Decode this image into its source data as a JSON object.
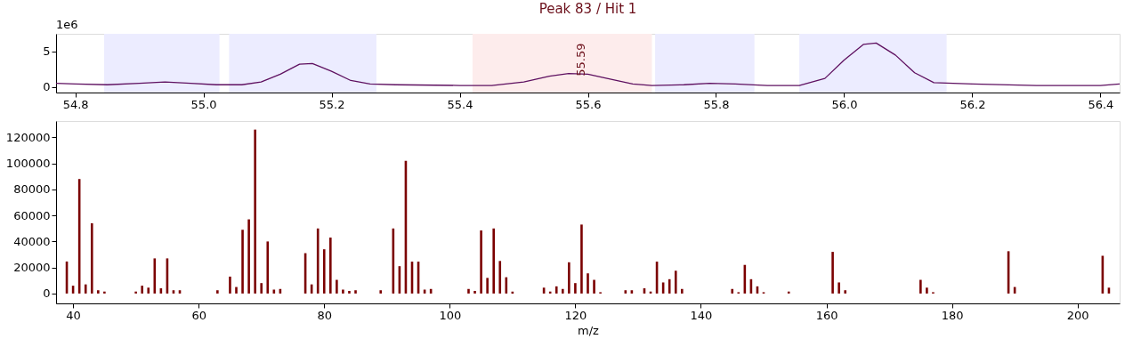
{
  "chart_data": [
    {
      "type": "line",
      "title": "Peak 83 / Hit 1",
      "x": [
        54.77,
        54.8,
        54.85,
        54.9,
        54.94,
        54.98,
        55.02,
        55.06,
        55.09,
        55.12,
        55.15,
        55.17,
        55.2,
        55.23,
        55.26,
        55.3,
        55.4,
        55.45,
        55.5,
        55.54,
        55.57,
        55.6,
        55.63,
        55.67,
        55.7,
        55.75,
        55.79,
        55.83,
        55.88,
        55.93,
        55.97,
        56.0,
        56.03,
        56.05,
        56.08,
        56.11,
        56.14,
        56.17,
        56.2,
        56.3,
        56.4,
        56.43
      ],
      "series": [
        {
          "color": "#5e1060",
          "values": [
            0.5,
            0.4,
            0.3,
            0.5,
            0.7,
            0.5,
            0.3,
            0.3,
            0.7,
            1.8,
            3.2,
            3.3,
            2.2,
            0.9,
            0.4,
            0.3,
            0.2,
            0.2,
            0.7,
            1.5,
            1.9,
            1.8,
            1.2,
            0.4,
            0.2,
            0.3,
            0.5,
            0.4,
            0.2,
            0.2,
            1.2,
            3.8,
            6.0,
            6.2,
            4.5,
            2.0,
            0.6,
            0.5,
            0.4,
            0.2,
            0.2,
            0.4
          ]
        }
      ],
      "xlim": [
        54.77,
        56.43
      ],
      "xticks": [
        54.8,
        {
          "value": 55.0,
          "label": "55.0"
        },
        55.2,
        55.4,
        55.6,
        55.8,
        {
          "value": 56.0,
          "label": "56.0"
        },
        56.2,
        56.4
      ],
      "ylim": [
        -0.8,
        7.5
      ],
      "yticks": [
        0,
        5
      ],
      "bands": [
        {
          "axis": "x",
          "from": 54.845,
          "to": 55.025,
          "color": "#ececff"
        },
        {
          "axis": "x",
          "from": 55.04,
          "to": 55.27,
          "color": "#ececff"
        },
        {
          "axis": "x",
          "from": 55.42,
          "to": 55.7,
          "color": "#fdecec"
        },
        {
          "axis": "x",
          "from": 55.705,
          "to": 55.86,
          "color": "#ececff"
        },
        {
          "axis": "x",
          "from": 55.93,
          "to": 56.16,
          "color": "#ececff"
        }
      ],
      "annotations": [
        "1e6",
        {
          "text": "55.59",
          "x": 55.59,
          "y": 1.5
        }
      ],
      "grid": false,
      "line_style": "solid",
      "marker": "none"
    },
    {
      "type": "bar",
      "xlabel": "m/z",
      "x": [
        39,
        40,
        41,
        42,
        43,
        44,
        45,
        50,
        51,
        52,
        53,
        54,
        55,
        56,
        57,
        63,
        65,
        66,
        67,
        68,
        69,
        70,
        71,
        72,
        73,
        77,
        78,
        79,
        80,
        81,
        82,
        83,
        84,
        85,
        89,
        91,
        92,
        93,
        94,
        95,
        96,
        97,
        103,
        104,
        105,
        106,
        107,
        108,
        109,
        110,
        115,
        116,
        117,
        118,
        119,
        120,
        121,
        122,
        123,
        124,
        128,
        129,
        131,
        132,
        133,
        134,
        135,
        136,
        137,
        145,
        146,
        147,
        148,
        149,
        150,
        154,
        161,
        162,
        163,
        175,
        176,
        177,
        189,
        190,
        204,
        205
      ],
      "series": [
        {
          "color": "#7b0000",
          "values": [
            24600,
            6000,
            88000,
            7000,
            54000,
            2500,
            1500,
            1500,
            6000,
            4500,
            27000,
            4000,
            27000,
            2500,
            2500,
            2500,
            13000,
            5000,
            49000,
            57000,
            126000,
            8000,
            40000,
            3000,
            3500,
            31000,
            7000,
            50000,
            34000,
            43000,
            10500,
            3000,
            2000,
            2500,
            2500,
            50000,
            21000,
            102000,
            24500,
            24500,
            3000,
            3500,
            3500,
            2000,
            48500,
            12000,
            50000,
            25000,
            12500,
            1500,
            4500,
            1500,
            5500,
            3500,
            24000,
            8000,
            53000,
            15500,
            10500,
            1000,
            2500,
            2500,
            4000,
            1500,
            24500,
            8500,
            11000,
            17500,
            3500,
            3500,
            1000,
            22000,
            11000,
            5500,
            1000,
            1500,
            32000,
            8500,
            2500,
            10500,
            4500,
            1000,
            32500,
            5000,
            29000,
            4500
          ]
        }
      ],
      "xlim": [
        38,
        206
      ],
      "xticks": [
        40,
        60,
        80,
        100,
        120,
        140,
        160,
        180,
        200
      ],
      "ylim": [
        -7600,
        132600
      ],
      "yticks": [
        0,
        20000,
        40000,
        60000,
        80000,
        100000,
        120000
      ],
      "grid": false
    }
  ]
}
